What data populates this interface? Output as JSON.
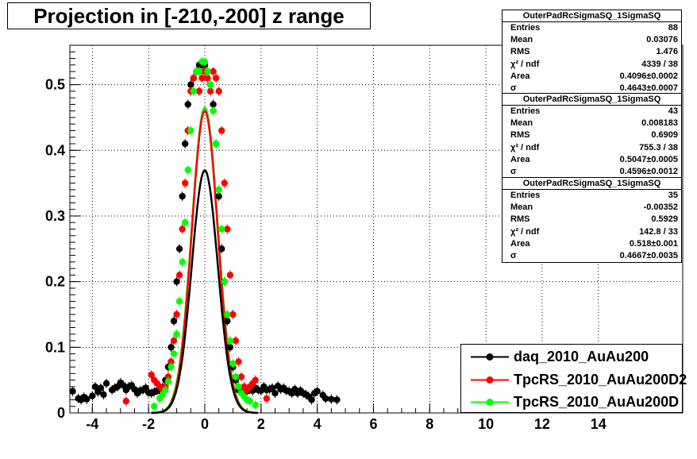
{
  "title": "Projection in [-210,-200] z range",
  "stats_boxes": [
    {
      "name": "OuterPadRcSigmaSQ_1SigmaSQ",
      "rows": [
        {
          "label": "Entries",
          "value": "88"
        },
        {
          "label": "Mean",
          "value": "0.03076"
        },
        {
          "label": "RMS",
          "value": "1.476"
        },
        {
          "label": "χ² / ndf",
          "value": "4339 / 38"
        },
        {
          "label": "Area",
          "value": "0.4096±0.0002"
        },
        {
          "label": "σ",
          "value": "0.4643±0.0007"
        }
      ]
    },
    {
      "name": "OuterPadRcSigmaSQ_1SigmaSQ",
      "rows": [
        {
          "label": "Entries",
          "value": "43"
        },
        {
          "label": "Mean",
          "value": "0.008183"
        },
        {
          "label": "RMS",
          "value": "0.6909"
        },
        {
          "label": "χ² / ndf",
          "value": "755.3 / 38"
        },
        {
          "label": "Area",
          "value": "0.5047±0.0005"
        },
        {
          "label": "σ",
          "value": "0.4596±0.0012"
        }
      ]
    },
    {
      "name": "OuterPadRcSigmaSQ_1SigmaSQ",
      "rows": [
        {
          "label": "Entries",
          "value": "35"
        },
        {
          "label": "Mean",
          "value": "-0.00352"
        },
        {
          "label": "RMS",
          "value": "0.5929"
        },
        {
          "label": "χ² / ndf",
          "value": "142.8 / 33"
        },
        {
          "label": "Area",
          "value": "0.518±0.001"
        },
        {
          "label": "σ",
          "value": "0.4667±0.0035"
        }
      ]
    }
  ],
  "legend": [
    {
      "label": "daq_2010_AuAu200",
      "color": "#000000"
    },
    {
      "label": "TpcRS_2010_AuAu200D2",
      "color": "#ff0000"
    },
    {
      "label": "TpcRS_2010_AuAu200D",
      "color": "#00ff00"
    }
  ],
  "chart_data": {
    "type": "scatter",
    "xlim": [
      -4.8,
      17
    ],
    "ylim": [
      0,
      0.56
    ],
    "x_ticks": [
      -4,
      -2,
      0,
      2,
      4,
      6,
      8,
      10,
      12,
      14
    ],
    "x_tick_labels": [
      "-4",
      "-2",
      "0",
      "2",
      "4",
      "6",
      "8",
      "10",
      "12",
      "14"
    ],
    "y_ticks": [
      0,
      0.1,
      0.2,
      0.3,
      0.4,
      0.5
    ],
    "y_tick_labels": [
      "0",
      "0.1",
      "0.2",
      "0.3",
      "0.4",
      "0.5"
    ],
    "grid": true,
    "series": [
      {
        "name": "daq_2010_AuAu200",
        "color": "#000000",
        "fit": {
          "area": 0.4096,
          "sigma": 0.4643
        },
        "x": [
          -4.7,
          -4.5,
          -4.4,
          -4.3,
          -4.2,
          -4.0,
          -3.9,
          -3.8,
          -3.7,
          -3.6,
          -3.5,
          -3.3,
          -3.2,
          -3.1,
          -3.0,
          -2.9,
          -2.8,
          -2.7,
          -2.6,
          -2.5,
          -2.4,
          -2.3,
          -2.2,
          -2.1,
          -2.0,
          -1.9,
          -1.8,
          -1.7,
          -1.6,
          -1.5,
          -1.4,
          -1.3,
          -1.2,
          -1.1,
          -1.0,
          -0.9,
          -0.8,
          -0.7,
          -0.6,
          -0.5,
          -0.4,
          -0.3,
          -0.2,
          -0.1,
          0.0,
          0.1,
          0.2,
          0.3,
          0.4,
          0.5,
          0.6,
          0.7,
          0.8,
          0.9,
          1.0,
          1.1,
          1.2,
          1.3,
          1.4,
          1.5,
          1.6,
          1.7,
          1.8,
          1.9,
          2.0,
          2.1,
          2.2,
          2.3,
          2.4,
          2.5,
          2.6,
          2.7,
          2.8,
          2.9,
          3.0,
          3.1,
          3.2,
          3.3,
          3.4,
          3.5,
          3.6,
          3.7,
          3.8,
          3.9,
          4.0,
          4.2,
          4.3,
          4.5,
          4.7
        ],
        "y": [
          0.033,
          0.022,
          0.02,
          0.024,
          0.021,
          0.026,
          0.04,
          0.032,
          0.038,
          0.028,
          0.045,
          0.035,
          0.038,
          0.04,
          0.046,
          0.042,
          0.035,
          0.04,
          0.042,
          0.036,
          0.03,
          0.034,
          0.035,
          0.038,
          0.031,
          0.03,
          0.032,
          0.034,
          0.033,
          0.039,
          0.05,
          0.07,
          0.1,
          0.14,
          0.2,
          0.25,
          0.33,
          0.41,
          0.47,
          0.5,
          0.51,
          0.52,
          0.53,
          0.53,
          0.53,
          0.52,
          0.5,
          0.47,
          0.41,
          0.33,
          0.25,
          0.2,
          0.14,
          0.1,
          0.07,
          0.05,
          0.035,
          0.031,
          0.03,
          0.033,
          0.036,
          0.034,
          0.038,
          0.035,
          0.034,
          0.04,
          0.035,
          0.036,
          0.038,
          0.03,
          0.041,
          0.036,
          0.038,
          0.034,
          0.033,
          0.03,
          0.036,
          0.03,
          0.034,
          0.03,
          0.028,
          0.025,
          0.02,
          0.03,
          0.033,
          0.027,
          0.022,
          0.021,
          0.02
        ]
      },
      {
        "name": "TpcRS_2010_AuAu200D2",
        "color": "#ff0000",
        "fit": {
          "area": 0.5047,
          "sigma": 0.4596
        },
        "x": [
          -2.8,
          -1.9,
          -1.8,
          -1.7,
          -1.6,
          -1.5,
          -1.4,
          -1.3,
          -1.2,
          -1.1,
          -1.0,
          -0.9,
          -0.8,
          -0.7,
          -0.6,
          -0.5,
          -0.4,
          -0.3,
          -0.2,
          -0.1,
          0.0,
          0.1,
          0.2,
          0.3,
          0.4,
          0.5,
          0.6,
          0.7,
          0.8,
          0.9,
          1.0,
          1.1,
          1.2,
          1.3,
          1.4,
          1.5,
          1.6,
          1.7,
          1.8,
          2.2
        ],
        "y": [
          0.018,
          0.058,
          0.05,
          0.045,
          0.04,
          0.035,
          0.04,
          0.055,
          0.078,
          0.11,
          0.15,
          0.21,
          0.28,
          0.35,
          0.43,
          0.49,
          0.51,
          0.52,
          0.49,
          0.51,
          0.52,
          0.51,
          0.49,
          0.52,
          0.51,
          0.49,
          0.43,
          0.35,
          0.28,
          0.21,
          0.15,
          0.11,
          0.078,
          0.055,
          0.04,
          0.035,
          0.04,
          0.045,
          0.05,
          0.022
        ]
      },
      {
        "name": "TpcRS_2010_AuAu200D",
        "color": "#00ff00",
        "fit": {
          "area": 0.518,
          "sigma": 0.4667
        },
        "x": [
          -1.8,
          -1.6,
          -1.5,
          -1.4,
          -1.3,
          -1.2,
          -1.1,
          -1.0,
          -0.9,
          -0.8,
          -0.7,
          -0.6,
          -0.5,
          -0.4,
          -0.3,
          -0.2,
          -0.1,
          0.0,
          0.1,
          0.2,
          0.3,
          0.4,
          0.5,
          0.6,
          0.7,
          0.8,
          0.9,
          1.0,
          1.1,
          1.2,
          1.3,
          1.4,
          1.5,
          1.6,
          1.8
        ],
        "y": [
          0.01,
          0.022,
          0.028,
          0.035,
          0.048,
          0.07,
          0.09,
          0.12,
          0.17,
          0.23,
          0.29,
          0.37,
          0.43,
          0.49,
          0.52,
          0.52,
          0.535,
          0.535,
          0.52,
          0.5,
          0.46,
          0.41,
          0.34,
          0.28,
          0.2,
          0.15,
          0.11,
          0.075,
          0.055,
          0.04,
          0.03,
          0.025,
          0.02,
          0.018,
          0.012
        ]
      }
    ]
  }
}
